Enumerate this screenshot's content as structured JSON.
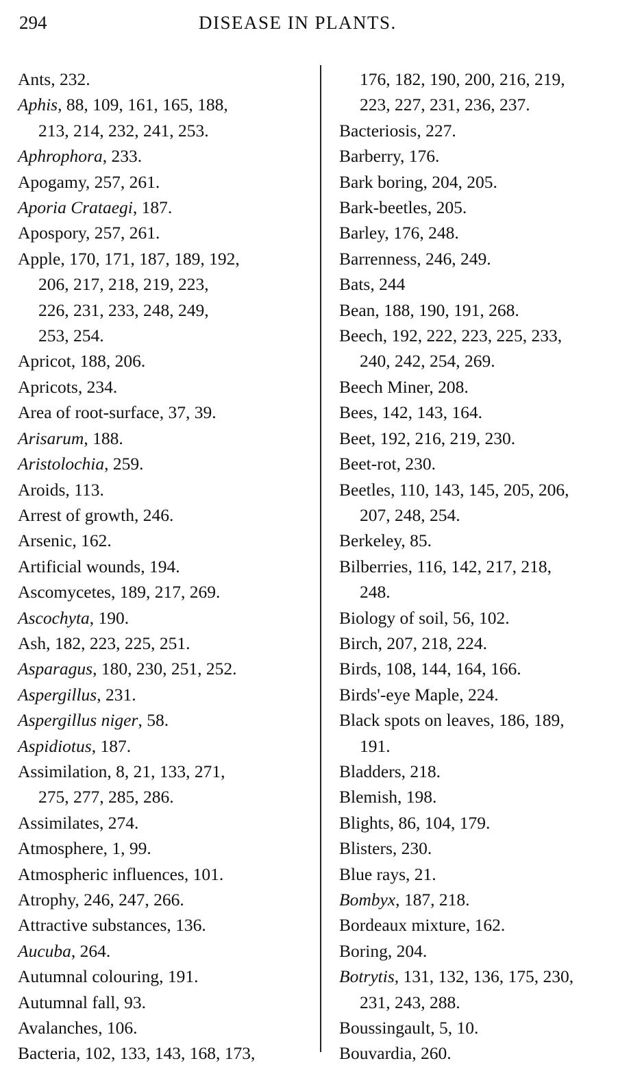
{
  "header": {
    "page_number": "294",
    "running_title": "DISEASE IN PLANTS."
  },
  "left_column": [
    {
      "t": "Ants",
      "i": false,
      "r": ", 232."
    },
    {
      "t": "Aphis",
      "i": true,
      "r": ", 88, 109, 161, 165, 188,"
    },
    {
      "t": "",
      "i": false,
      "r": "213, 214, 232, 241, 253.",
      "c": true
    },
    {
      "t": "Aphrophora",
      "i": true,
      "r": ", 233."
    },
    {
      "t": "Apogamy",
      "i": false,
      "r": ", 257, 261."
    },
    {
      "t": "Aporia Crataegi",
      "i": true,
      "r": ", 187."
    },
    {
      "t": "Apospory",
      "i": false,
      "r": ", 257, 261."
    },
    {
      "t": "Apple",
      "i": false,
      "r": ", 170, 171, 187, 189, 192,"
    },
    {
      "t": "",
      "i": false,
      "r": "206,  217,  218,  219,  223,",
      "c": true
    },
    {
      "t": "",
      "i": false,
      "r": "226,  231,  233,  248,  249,",
      "c": true
    },
    {
      "t": "",
      "i": false,
      "r": "253, 254.",
      "c": true
    },
    {
      "t": "Apricot",
      "i": false,
      "r": ", 188, 206."
    },
    {
      "t": "Apricots",
      "i": false,
      "r": ", 234."
    },
    {
      "t": "Area of root-surface",
      "i": false,
      "r": ", 37, 39."
    },
    {
      "t": "Arisarum",
      "i": true,
      "r": ", 188."
    },
    {
      "t": "Aristolochia",
      "i": true,
      "r": ", 259."
    },
    {
      "t": "Aroids",
      "i": false,
      "r": ", 113."
    },
    {
      "t": "Arrest of growth",
      "i": false,
      "r": ", 246."
    },
    {
      "t": "Arsenic",
      "i": false,
      "r": ", 162."
    },
    {
      "t": "Artificial wounds",
      "i": false,
      "r": ", 194."
    },
    {
      "t": "Ascomycetes",
      "i": false,
      "r": ", 189, 217, 269."
    },
    {
      "t": "Ascochyta",
      "i": true,
      "r": ", 190."
    },
    {
      "t": "Ash",
      "i": false,
      "r": ", 182, 223, 225, 251."
    },
    {
      "t": "Asparagus",
      "i": true,
      "r": ", 180, 230, 251, 252."
    },
    {
      "t": "Aspergillus",
      "i": true,
      "r": ", 231."
    },
    {
      "t": "Aspergillus niger",
      "i": true,
      "r": ", 58."
    },
    {
      "t": "Aspidiotus",
      "i": true,
      "r": ", 187."
    },
    {
      "t": "Assimilation",
      "i": false,
      "r": ", 8, 21, 133, 271,"
    },
    {
      "t": "",
      "i": false,
      "r": "275, 277, 285, 286.",
      "c": true
    },
    {
      "t": "Assimilates",
      "i": false,
      "r": ", 274."
    },
    {
      "t": "Atmosphere",
      "i": false,
      "r": ", 1, 99."
    },
    {
      "t": "Atmospheric influences",
      "i": false,
      "r": ", 101."
    },
    {
      "t": "Atrophy",
      "i": false,
      "r": ", 246, 247, 266."
    },
    {
      "t": "Attractive substances",
      "i": false,
      "r": ", 136."
    },
    {
      "t": "Aucuba",
      "i": true,
      "r": ", 264."
    },
    {
      "t": "Autumnal colouring",
      "i": false,
      "r": ", 191."
    },
    {
      "t": "Autumnal fall",
      "i": false,
      "r": ", 93."
    },
    {
      "t": "Avalanches",
      "i": false,
      "r": ", 106."
    },
    {
      "t": "Bacteria",
      "i": false,
      "r": ", 102, 133, 143, 168, 173,"
    }
  ],
  "right_column": [
    {
      "t": "",
      "i": false,
      "r": "176, 182, 190, 200, 216, 219,",
      "c": true
    },
    {
      "t": "",
      "i": false,
      "r": "223, 227, 231, 236, 237.",
      "c": true
    },
    {
      "t": "Bacteriosis",
      "i": false,
      "r": ", 227."
    },
    {
      "t": "Barberry",
      "i": false,
      "r": ", 176."
    },
    {
      "t": "Bark boring",
      "i": false,
      "r": ", 204, 205."
    },
    {
      "t": "Bark-beetles",
      "i": false,
      "r": ", 205."
    },
    {
      "t": "Barley",
      "i": false,
      "r": ", 176, 248."
    },
    {
      "t": "Barrenness",
      "i": false,
      "r": ", 246, 249."
    },
    {
      "t": "Bats",
      "i": false,
      "r": ", 244"
    },
    {
      "t": "Bean",
      "i": false,
      "r": ", 188, 190, 191, 268."
    },
    {
      "t": "Beech",
      "i": false,
      "r": ", 192, 222, 223, 225, 233,"
    },
    {
      "t": "",
      "i": false,
      "r": "240, 242, 254, 269.",
      "c": true
    },
    {
      "t": "Beech Miner",
      "i": false,
      "r": ", 208."
    },
    {
      "t": "Bees",
      "i": false,
      "r": ", 142, 143, 164."
    },
    {
      "t": "Beet",
      "i": false,
      "r": ", 192, 216, 219, 230."
    },
    {
      "t": "Beet-rot",
      "i": false,
      "r": ", 230."
    },
    {
      "t": "Beetles",
      "i": false,
      "r": ", 110, 143, 145, 205, 206,"
    },
    {
      "t": "",
      "i": false,
      "r": "207, 248, 254.",
      "c": true
    },
    {
      "t": "Berkeley",
      "i": false,
      "r": ", 85."
    },
    {
      "t": "Bilberries",
      "i": false,
      "r": ", 116, 142, 217, 218,"
    },
    {
      "t": "",
      "i": false,
      "r": "248.",
      "c": true
    },
    {
      "t": "Biology of soil",
      "i": false,
      "r": ", 56, 102."
    },
    {
      "t": "Birch",
      "i": false,
      "r": ", 207, 218, 224."
    },
    {
      "t": "Birds",
      "i": false,
      "r": ", 108, 144, 164, 166."
    },
    {
      "t": "Birds'-eye Maple",
      "i": false,
      "r": ", 224."
    },
    {
      "t": "Black spots on leaves",
      "i": false,
      "r": ", 186, 189,"
    },
    {
      "t": "",
      "i": false,
      "r": "191.",
      "c": true
    },
    {
      "t": "Bladders",
      "i": false,
      "r": ", 218."
    },
    {
      "t": "Blemish",
      "i": false,
      "r": ", 198."
    },
    {
      "t": "Blights",
      "i": false,
      "r": ", 86, 104, 179."
    },
    {
      "t": "Blisters",
      "i": false,
      "r": ", 230."
    },
    {
      "t": "Blue rays",
      "i": false,
      "r": ", 21."
    },
    {
      "t": "Bombyx",
      "i": true,
      "r": ", 187, 218."
    },
    {
      "t": "Bordeaux mixture",
      "i": false,
      "r": ", 162."
    },
    {
      "t": "Boring",
      "i": false,
      "r": ", 204."
    },
    {
      "t": "Botrytis",
      "i": true,
      "r": ", 131, 132, 136, 175, 230,"
    },
    {
      "t": "",
      "i": false,
      "r": "231, 243, 288.",
      "c": true
    },
    {
      "t": "Boussingault",
      "i": false,
      "r": ", 5, 10."
    },
    {
      "t": "Bouvardia",
      "i": false,
      "r": ", 260."
    }
  ]
}
